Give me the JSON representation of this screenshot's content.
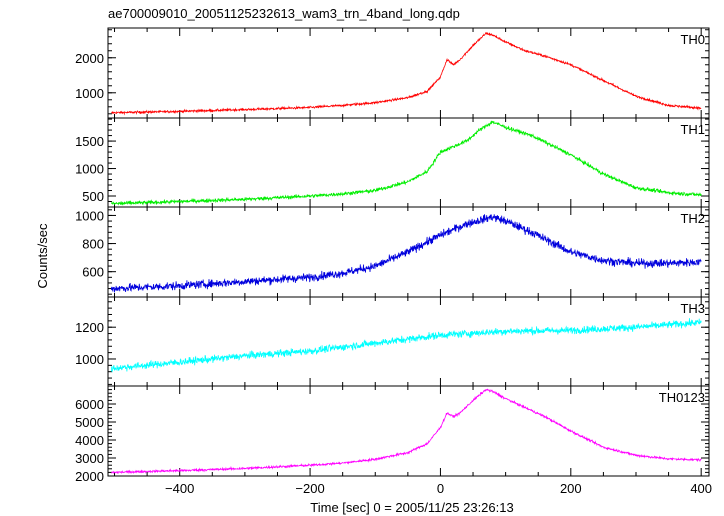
{
  "title": "ae700009010_20051125232613_wam3_trn_4band_long.qdp",
  "ylabel": "Counts/sec",
  "xlabel": "Time [sec] 0 = 2005/11/25 23:26:13",
  "x_ticks": [
    -400,
    -200,
    0,
    200,
    400
  ],
  "chart_data": [
    {
      "type": "line",
      "series": [
        {
          "name": "TH0",
          "color": "#ff0000",
          "x": [
            -505,
            -400,
            -300,
            -200,
            -150,
            -100,
            -50,
            -20,
            0,
            10,
            20,
            30,
            50,
            70,
            80,
            100,
            130,
            160,
            200,
            250,
            300,
            350,
            400
          ],
          "y": [
            430,
            470,
            520,
            580,
            640,
            720,
            860,
            1050,
            1450,
            1950,
            1800,
            1950,
            2350,
            2700,
            2650,
            2450,
            2200,
            2050,
            1800,
            1350,
            900,
            640,
            560
          ]
        }
      ],
      "ylim": [
        280,
        2850
      ],
      "yticks": [
        1000,
        2000
      ],
      "grid": false
    },
    {
      "type": "line",
      "series": [
        {
          "name": "TH1",
          "color": "#00ee00",
          "x": [
            -505,
            -400,
            -300,
            -200,
            -150,
            -100,
            -50,
            -20,
            0,
            20,
            40,
            60,
            80,
            100,
            140,
            200,
            250,
            300,
            350,
            400
          ],
          "y": [
            360,
            400,
            440,
            500,
            540,
            600,
            760,
            950,
            1300,
            1400,
            1500,
            1700,
            1850,
            1750,
            1600,
            1250,
            900,
            650,
            560,
            520
          ]
        }
      ],
      "ylim": [
        300,
        1920
      ],
      "yticks": [
        500,
        1000,
        1500
      ],
      "grid": false
    },
    {
      "type": "line",
      "series": [
        {
          "name": "TH2",
          "color": "#0000dd",
          "x": [
            -505,
            -400,
            -300,
            -200,
            -150,
            -100,
            -50,
            0,
            40,
            80,
            100,
            140,
            200,
            250,
            300,
            350,
            400
          ],
          "y": [
            480,
            500,
            530,
            560,
            590,
            640,
            740,
            860,
            940,
            990,
            960,
            880,
            740,
            680,
            660,
            660,
            670
          ]
        }
      ],
      "ylim": [
        420,
        1060
      ],
      "yticks": [
        600,
        800,
        1000
      ],
      "grid": false
    },
    {
      "type": "line",
      "series": [
        {
          "name": "TH3",
          "color": "#00ffff",
          "x": [
            -505,
            -400,
            -300,
            -200,
            -100,
            0,
            100,
            200,
            300,
            400
          ],
          "y": [
            940,
            980,
            1020,
            1050,
            1100,
            1150,
            1175,
            1180,
            1200,
            1230
          ]
        }
      ],
      "ylim": [
        830,
        1390
      ],
      "yticks": [
        1000,
        1200
      ],
      "grid": false
    },
    {
      "type": "line",
      "series": [
        {
          "name": "TH0123",
          "color": "#ff00ff",
          "x": [
            -505,
            -400,
            -300,
            -200,
            -150,
            -100,
            -50,
            -20,
            0,
            10,
            20,
            30,
            50,
            70,
            80,
            100,
            130,
            160,
            200,
            250,
            300,
            350,
            400
          ],
          "y": [
            2200,
            2300,
            2420,
            2600,
            2720,
            2930,
            3300,
            3800,
            4700,
            5500,
            5300,
            5500,
            6200,
            6800,
            6700,
            6300,
            5800,
            5300,
            4500,
            3600,
            3150,
            2950,
            2900
          ]
        }
      ],
      "ylim": [
        2000,
        7000
      ],
      "yticks": [
        2000,
        3000,
        4000,
        5000,
        6000
      ],
      "grid": false
    }
  ]
}
